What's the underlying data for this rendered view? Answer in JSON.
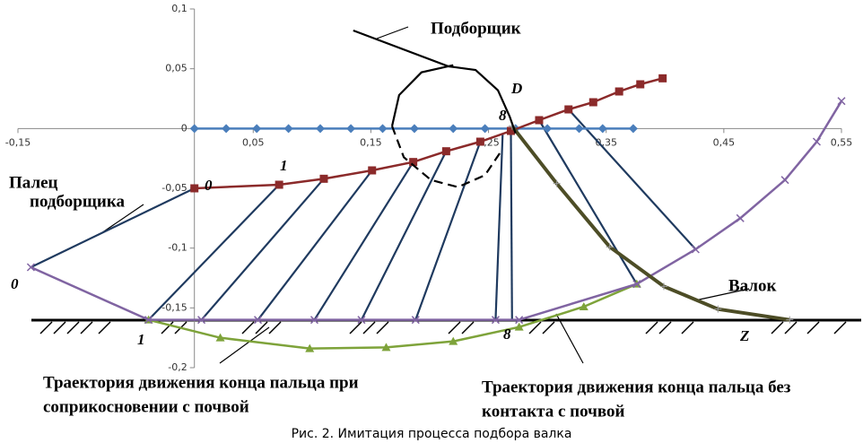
{
  "chart_data": {
    "type": "line",
    "caption": "Рис. 2. Имитация процесса подбора валка",
    "xlim": [
      -0.15,
      0.55
    ],
    "ylim": [
      -0.2,
      0.1
    ],
    "xticks": [
      {
        "value": -0.15,
        "label": "-0,15"
      },
      {
        "value": 0.05,
        "label": "0,05"
      },
      {
        "value": 0.15,
        "label": "0,15"
      },
      {
        "value": 0.25,
        "label": "0,25"
      },
      {
        "value": 0.35,
        "label": "0,35"
      },
      {
        "value": 0.45,
        "label": "0,45"
      },
      {
        "value": 0.55,
        "label": "0,55"
      }
    ],
    "yticks": [
      {
        "value": 0.1,
        "label": "0,1"
      },
      {
        "value": 0.05,
        "label": "0,05"
      },
      0,
      {
        "value": -0.05,
        "label": "-0,05"
      },
      {
        "value": -0.1,
        "label": "-0,1"
      },
      {
        "value": -0.15,
        "label": "-0,15"
      },
      {
        "value": -0.2,
        "label": "-0,2"
      }
    ],
    "series": [
      {
        "color": "#1f3a5f",
        "x": [
          0.0,
          -0.139
        ],
        "values": [
          -0.05,
          -0.116
        ]
      },
      {
        "color": "#1f3a5f",
        "x": [
          0.072,
          -0.039
        ],
        "values": [
          -0.047,
          -0.16
        ]
      },
      {
        "color": "#1f3a5f",
        "x": [
          0.11,
          0.006
        ],
        "values": [
          -0.042,
          -0.16
        ]
      },
      {
        "color": "#1f3a5f",
        "x": [
          0.151,
          0.054
        ],
        "values": [
          -0.035,
          -0.16
        ]
      },
      {
        "color": "#1f3a5f",
        "x": [
          0.186,
          0.102
        ],
        "values": [
          -0.028,
          -0.16
        ]
      },
      {
        "color": "#1f3a5f",
        "x": [
          0.214,
          0.142
        ],
        "values": [
          -0.019,
          -0.16
        ]
      },
      {
        "color": "#1f3a5f",
        "x": [
          0.243,
          0.188
        ],
        "values": [
          -0.011,
          -0.16
        ]
      },
      {
        "color": "#1f3a5f",
        "x": [
          0.262,
          0.256
        ],
        "values": [
          -0.005,
          -0.16
        ]
      },
      {
        "color": "#1f3a5f",
        "x": [
          0.269,
          0.27
        ],
        "values": [
          -0.002,
          -0.16
        ]
      },
      {
        "color": "#1f3a5f",
        "x": [
          0.293,
          0.376
        ],
        "values": [
          0.007,
          -0.13
        ]
      },
      {
        "color": "#1f3a5f",
        "x": [
          0.318,
          0.426
        ],
        "values": [
          0.016,
          -0.101
        ]
      },
      {
        "color": "#4a7ebb",
        "marker": "diamond",
        "x": [
          0.0,
          0.027,
          0.053,
          0.08,
          0.107,
          0.133,
          0.16,
          0.187,
          0.22,
          0.247,
          0.273,
          0.3,
          0.327,
          0.347,
          0.373
        ],
        "values": [
          0,
          0,
          0,
          0,
          0,
          0,
          0,
          0,
          0,
          0,
          0,
          0,
          0,
          0,
          0
        ]
      },
      {
        "color": "#8b2a2a",
        "marker": "square",
        "x": [
          0.0,
          0.072,
          0.11,
          0.151,
          0.186,
          0.214,
          0.243,
          0.269,
          0.293,
          0.318,
          0.339,
          0.361,
          0.379,
          0.398
        ],
        "values": [
          -0.05,
          -0.047,
          -0.042,
          -0.035,
          -0.028,
          -0.019,
          -0.011,
          -0.002,
          0.007,
          0.016,
          0.022,
          0.031,
          0.037,
          0.042
        ]
      },
      {
        "color": "#7ea33a",
        "marker": "triangle",
        "x": [
          -0.039,
          0.022,
          0.098,
          0.163,
          0.22,
          0.276,
          0.331,
          0.376
        ],
        "values": [
          -0.16,
          -0.175,
          -0.184,
          -0.183,
          -0.178,
          -0.166,
          -0.149,
          -0.13
        ]
      },
      {
        "color": "#8064a2",
        "marker": "cross",
        "x": [
          -0.139,
          -0.039,
          0.006,
          0.054,
          0.102,
          0.142,
          0.188,
          0.256,
          0.276,
          0.376,
          0.426,
          0.464,
          0.502,
          0.529,
          0.55
        ],
        "values": [
          -0.116,
          -0.16,
          -0.16,
          -0.16,
          -0.16,
          -0.16,
          -0.16,
          -0.16,
          -0.16,
          -0.13,
          -0.101,
          -0.075,
          -0.043,
          -0.011,
          0.023
        ]
      },
      {
        "color": "#4d4d26",
        "marker": "plus",
        "x": [
          0.27,
          0.308,
          0.353,
          0.399,
          0.445,
          0.506
        ],
        "values": [
          0.002,
          -0.046,
          -0.099,
          -0.132,
          -0.151,
          -0.16
        ]
      },
      {
        "color": "#000000",
        "x": [
          0.135,
          0.216,
          0.239,
          0.258,
          0.268,
          0.273
        ],
        "values": [
          0.082,
          0.052,
          0.049,
          0.032,
          0.01,
          -0.004
        ]
      },
      {
        "color": "#000000",
        "x": [
          0.22,
          0.193,
          0.174,
          0.168
        ],
        "values": [
          0.053,
          0.047,
          0.028,
          0.002
        ]
      },
      {
        "color": "#000000",
        "dash": true,
        "x": [
          0.168,
          0.178,
          0.201,
          0.224,
          0.247,
          0.26
        ],
        "values": [
          0.002,
          -0.024,
          -0.043,
          -0.049,
          -0.039,
          -0.02
        ]
      }
    ],
    "annotations": [
      "Подборщик",
      "Палец",
      "подборщика",
      "Валок",
      "Z",
      "D",
      "8",
      "8",
      "0",
      "1",
      "0",
      "1",
      "Траектория движения конца пальца при",
      "соприкосновении с почвой",
      "Траектория движения конца пальца без",
      "контакта с почвой"
    ]
  }
}
